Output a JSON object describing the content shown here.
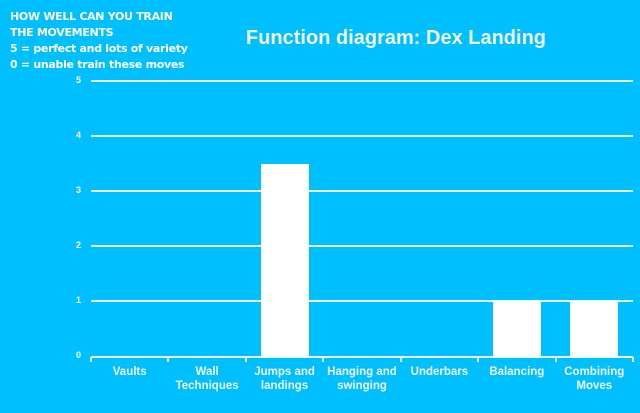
{
  "note": {
    "lines": [
      "HOW WELL CAN YOU TRAIN",
      "THE MOVEMENTS",
      "5 = perfect and lots of variety",
      "0 = unable train these moves"
    ]
  },
  "chart_data": {
    "type": "bar",
    "title": "Function diagram: Dex Landing",
    "xlabel": "",
    "ylabel": "",
    "ylim": [
      0,
      5
    ],
    "yticks": [
      "0",
      "1",
      "2",
      "3",
      "4",
      "5"
    ],
    "grid": true,
    "legend": null,
    "categories": [
      "Vaults",
      "Wall Techniques",
      "Jumps and landings",
      "Hanging and swinging",
      "Underbars",
      "Balancing",
      "Combining Moves"
    ],
    "category_lines": [
      [
        "Vaults"
      ],
      [
        "Wall",
        "Techniques"
      ],
      [
        "Jumps and",
        "landings"
      ],
      [
        "Hanging and",
        "swinging"
      ],
      [
        "Underbars"
      ],
      [
        "Balancing"
      ],
      [
        "Combining",
        "Moves"
      ]
    ],
    "values": [
      0,
      0,
      3.5,
      0,
      0,
      1,
      1
    ],
    "colors": {
      "background": "#00bfff",
      "bar": "#ffffff",
      "grid": "#e8f8ff"
    }
  }
}
